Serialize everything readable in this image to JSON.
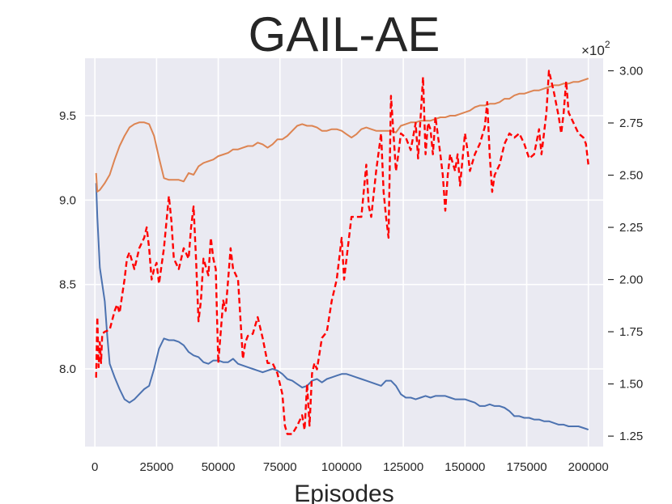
{
  "chart_data": {
    "type": "line",
    "title": "GAIL-AE",
    "xlabel": "Episodes",
    "ylabel": "",
    "xlim": [
      -4000,
      206000
    ],
    "xticks": [
      0,
      25000,
      50000,
      75000,
      100000,
      125000,
      150000,
      175000,
      200000
    ],
    "xtick_labels": [
      "0",
      "25000",
      "50000",
      "75000",
      "100000",
      "125000",
      "150000",
      "175000",
      "200000"
    ],
    "ylim": [
      7.54,
      9.84
    ],
    "yticks": [
      8.0,
      8.5,
      9.0,
      9.5
    ],
    "ytick_labels": [
      "8.0",
      "8.5",
      "9.0",
      "9.5"
    ],
    "y2lim": [
      1.2,
      3.06
    ],
    "y2ticks": [
      1.25,
      1.5,
      1.75,
      2.0,
      2.25,
      2.5,
      2.75,
      3.0
    ],
    "y2tick_labels": [
      "1.25",
      "1.50",
      "1.75",
      "2.00",
      "2.25",
      "2.50",
      "2.75",
      "3.00"
    ],
    "y2_multiplier": "×10",
    "y2_multiplier_exp": "2",
    "grid": true,
    "series": [
      {
        "axis": "left",
        "color": "#4c72b0",
        "style": "solid",
        "x": [
          500,
          1000,
          2000,
          4000,
          5000,
          6000,
          8000,
          10000,
          12000,
          14000,
          16000,
          18000,
          20000,
          22000,
          24000,
          26000,
          28000,
          30000,
          32000,
          34000,
          36000,
          38000,
          40000,
          42000,
          44000,
          46000,
          48000,
          50000,
          52000,
          54000,
          56000,
          58000,
          60000,
          62000,
          64000,
          66000,
          68000,
          70000,
          72000,
          74000,
          76000,
          78000,
          80000,
          82000,
          84000,
          86000,
          88000,
          90000,
          92000,
          94000,
          96000,
          98000,
          100000,
          102000,
          104000,
          106000,
          108000,
          110000,
          112000,
          114000,
          116000,
          118000,
          120000,
          122000,
          124000,
          126000,
          128000,
          130000,
          132000,
          134000,
          136000,
          138000,
          140000,
          142000,
          144000,
          146000,
          148000,
          150000,
          152000,
          154000,
          156000,
          158000,
          160000,
          162000,
          164000,
          166000,
          168000,
          170000,
          172000,
          174000,
          176000,
          178000,
          180000,
          182000,
          184000,
          186000,
          188000,
          190000,
          192000,
          194000,
          196000,
          198000,
          200000
        ],
        "y": [
          9.1,
          8.9,
          8.6,
          8.4,
          8.2,
          8.03,
          7.95,
          7.88,
          7.82,
          7.8,
          7.82,
          7.85,
          7.88,
          7.9,
          8.0,
          8.12,
          8.18,
          8.17,
          8.17,
          8.16,
          8.14,
          8.1,
          8.08,
          8.07,
          8.04,
          8.03,
          8.05,
          8.05,
          8.04,
          8.04,
          8.06,
          8.03,
          8.02,
          8.01,
          8.0,
          7.99,
          7.98,
          7.99,
          8.0,
          7.99,
          7.97,
          7.94,
          7.93,
          7.91,
          7.89,
          7.9,
          7.93,
          7.94,
          7.92,
          7.94,
          7.95,
          7.96,
          7.97,
          7.97,
          7.96,
          7.95,
          7.94,
          7.93,
          7.92,
          7.91,
          7.9,
          7.93,
          7.93,
          7.9,
          7.85,
          7.83,
          7.83,
          7.82,
          7.83,
          7.84,
          7.83,
          7.84,
          7.84,
          7.84,
          7.83,
          7.82,
          7.82,
          7.82,
          7.81,
          7.8,
          7.78,
          7.78,
          7.79,
          7.78,
          7.78,
          7.77,
          7.75,
          7.72,
          7.72,
          7.71,
          7.71,
          7.7,
          7.7,
          7.69,
          7.69,
          7.68,
          7.67,
          7.67,
          7.66,
          7.66,
          7.66,
          7.65,
          7.64
        ]
      },
      {
        "axis": "left",
        "color": "#dd8452",
        "style": "solid",
        "x": [
          500,
          1000,
          2000,
          4000,
          6000,
          8000,
          10000,
          12000,
          14000,
          16000,
          18000,
          20000,
          22000,
          24000,
          26000,
          28000,
          30000,
          32000,
          34000,
          36000,
          38000,
          40000,
          42000,
          44000,
          46000,
          48000,
          50000,
          52000,
          54000,
          56000,
          58000,
          60000,
          62000,
          64000,
          66000,
          68000,
          70000,
          72000,
          74000,
          76000,
          78000,
          80000,
          82000,
          84000,
          86000,
          88000,
          90000,
          92000,
          94000,
          96000,
          98000,
          100000,
          102000,
          104000,
          106000,
          108000,
          110000,
          112000,
          114000,
          116000,
          118000,
          120000,
          122000,
          124000,
          126000,
          128000,
          130000,
          132000,
          134000,
          136000,
          138000,
          140000,
          142000,
          144000,
          146000,
          148000,
          150000,
          152000,
          154000,
          156000,
          158000,
          160000,
          162000,
          164000,
          166000,
          168000,
          170000,
          172000,
          174000,
          176000,
          178000,
          180000,
          182000,
          184000,
          186000,
          188000,
          190000,
          192000,
          194000,
          196000,
          198000,
          200000
        ],
        "y": [
          9.16,
          9.05,
          9.06,
          9.1,
          9.15,
          9.24,
          9.32,
          9.38,
          9.43,
          9.45,
          9.46,
          9.46,
          9.45,
          9.38,
          9.25,
          9.13,
          9.12,
          9.12,
          9.12,
          9.11,
          9.16,
          9.15,
          9.2,
          9.22,
          9.23,
          9.24,
          9.26,
          9.27,
          9.28,
          9.3,
          9.3,
          9.31,
          9.32,
          9.32,
          9.34,
          9.33,
          9.31,
          9.33,
          9.36,
          9.36,
          9.38,
          9.41,
          9.44,
          9.45,
          9.44,
          9.44,
          9.43,
          9.41,
          9.41,
          9.42,
          9.42,
          9.41,
          9.39,
          9.37,
          9.39,
          9.42,
          9.43,
          9.42,
          9.41,
          9.41,
          9.41,
          9.41,
          9.4,
          9.44,
          9.45,
          9.46,
          9.46,
          9.47,
          9.47,
          9.47,
          9.48,
          9.49,
          9.49,
          9.5,
          9.5,
          9.51,
          9.52,
          9.53,
          9.55,
          9.56,
          9.56,
          9.57,
          9.57,
          9.58,
          9.6,
          9.6,
          9.62,
          9.63,
          9.63,
          9.64,
          9.65,
          9.65,
          9.66,
          9.67,
          9.68,
          9.68,
          9.69,
          9.69,
          9.7,
          9.7,
          9.71,
          9.72
        ]
      },
      {
        "axis": "right",
        "color": "#ff0000",
        "style": "dashed",
        "x": [
          500,
          1000,
          1500,
          2000,
          2500,
          3000,
          4000,
          6000,
          8000,
          9000,
          10000,
          11000,
          12000,
          13000,
          14000,
          16000,
          18000,
          20000,
          21000,
          22000,
          23000,
          24000,
          25000,
          26000,
          28000,
          30000,
          31000,
          32000,
          34000,
          36000,
          38000,
          39000,
          40000,
          41000,
          42000,
          43000,
          44000,
          46000,
          47000,
          48000,
          49000,
          50000,
          52000,
          53000,
          54000,
          55000,
          56000,
          58000,
          60000,
          61000,
          62000,
          64000,
          66000,
          68000,
          70000,
          72000,
          74000,
          76000,
          77000,
          78000,
          79000,
          80000,
          82000,
          84000,
          85000,
          86000,
          87000,
          88000,
          89000,
          90000,
          92000,
          94000,
          96000,
          98000,
          100000,
          101000,
          102000,
          104000,
          106000,
          108000,
          110000,
          111000,
          112000,
          114000,
          116000,
          117000,
          118000,
          119000,
          120000,
          121000,
          122000,
          123000,
          124000,
          126000,
          128000,
          130000,
          131000,
          132000,
          133000,
          134000,
          135000,
          136000,
          137000,
          138000,
          140000,
          141000,
          142000,
          143000,
          144000,
          146000,
          147000,
          148000,
          150000,
          151000,
          152000,
          154000,
          156000,
          158000,
          159000,
          160000,
          161000,
          162000,
          164000,
          166000,
          168000,
          170000,
          172000,
          174000,
          176000,
          178000,
          180000,
          181000,
          182000,
          183000,
          184000,
          186000,
          188000,
          189000,
          190000,
          191000,
          192000,
          194000,
          196000,
          198000,
          199000,
          200000
        ],
        "y": [
          1.53,
          1.82,
          1.58,
          1.7,
          1.6,
          1.74,
          1.75,
          1.76,
          1.85,
          1.88,
          1.84,
          1.92,
          2.0,
          2.1,
          2.13,
          2.05,
          2.15,
          2.2,
          2.25,
          2.15,
          2.0,
          2.05,
          2.08,
          1.98,
          2.15,
          2.4,
          2.28,
          2.1,
          2.05,
          2.15,
          2.1,
          2.25,
          2.35,
          2.1,
          1.8,
          1.9,
          2.1,
          2.02,
          2.2,
          2.1,
          2.05,
          1.6,
          1.9,
          1.85,
          2.0,
          2.15,
          2.05,
          2.0,
          1.62,
          1.7,
          1.73,
          1.74,
          1.82,
          1.72,
          1.6,
          1.6,
          1.55,
          1.45,
          1.3,
          1.26,
          1.26,
          1.26,
          1.3,
          1.35,
          1.28,
          1.5,
          1.3,
          1.55,
          1.6,
          1.57,
          1.72,
          1.75,
          1.9,
          2.0,
          2.2,
          2.0,
          2.1,
          2.3,
          2.3,
          2.3,
          2.55,
          2.35,
          2.3,
          2.52,
          2.7,
          2.42,
          2.3,
          2.2,
          2.88,
          2.7,
          2.52,
          2.6,
          2.7,
          2.68,
          2.62,
          2.75,
          2.58,
          2.78,
          2.97,
          2.6,
          2.75,
          2.72,
          2.6,
          2.78,
          2.6,
          2.5,
          2.33,
          2.5,
          2.6,
          2.52,
          2.6,
          2.45,
          2.7,
          2.62,
          2.52,
          2.6,
          2.65,
          2.73,
          2.85,
          2.6,
          2.42,
          2.5,
          2.55,
          2.65,
          2.7,
          2.68,
          2.7,
          2.65,
          2.58,
          2.6,
          2.72,
          2.6,
          2.7,
          2.8,
          3.0,
          2.9,
          2.78,
          2.7,
          2.8,
          2.95,
          2.8,
          2.75,
          2.7,
          2.68,
          2.65,
          2.55
        ]
      }
    ]
  }
}
